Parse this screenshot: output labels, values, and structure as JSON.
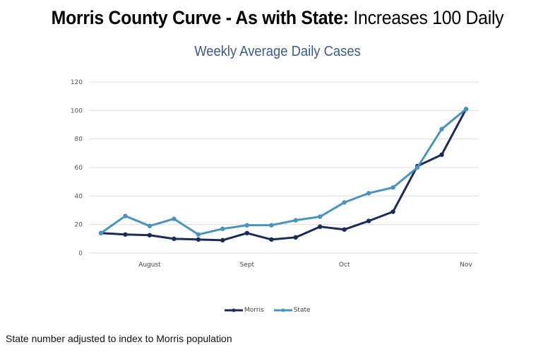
{
  "slide": {
    "title_bold": "Morris County Curve - As with State:",
    "title_normal": "Increases 100 Daily",
    "footnote": "State number adjusted to index to Morris population"
  },
  "colors": {
    "morris": "#1b2b57",
    "state": "#4a93bd",
    "grid": "#dddddd",
    "chart_title": "#3c5a8a"
  },
  "chart_data": {
    "type": "line",
    "title": "Weekly Average Daily Cases",
    "xlabel": "",
    "ylabel": "",
    "ylim": [
      0,
      120
    ],
    "yticks": [
      0,
      20,
      40,
      60,
      80,
      100,
      120
    ],
    "grid": true,
    "legend_position": "bottom",
    "x": [
      1,
      2,
      3,
      4,
      5,
      6,
      7,
      8,
      9,
      10,
      11,
      12,
      13,
      14,
      15,
      16
    ],
    "x_tick_labels": [
      {
        "label": "August",
        "at": 3
      },
      {
        "label": "Sept",
        "at": 7
      },
      {
        "label": "Oct",
        "at": 11
      },
      {
        "label": "Nov",
        "at": 16
      }
    ],
    "series": [
      {
        "name": "Morris",
        "values": [
          14,
          13,
          12.5,
          10,
          9.5,
          9,
          14,
          9.5,
          11,
          18.5,
          16.5,
          22.5,
          29,
          61,
          69,
          101
        ]
      },
      {
        "name": "State",
        "values": [
          14,
          26,
          19,
          24,
          13,
          17,
          19.5,
          19.5,
          23,
          25.5,
          35.5,
          42,
          46,
          60,
          87,
          101
        ]
      }
    ]
  }
}
